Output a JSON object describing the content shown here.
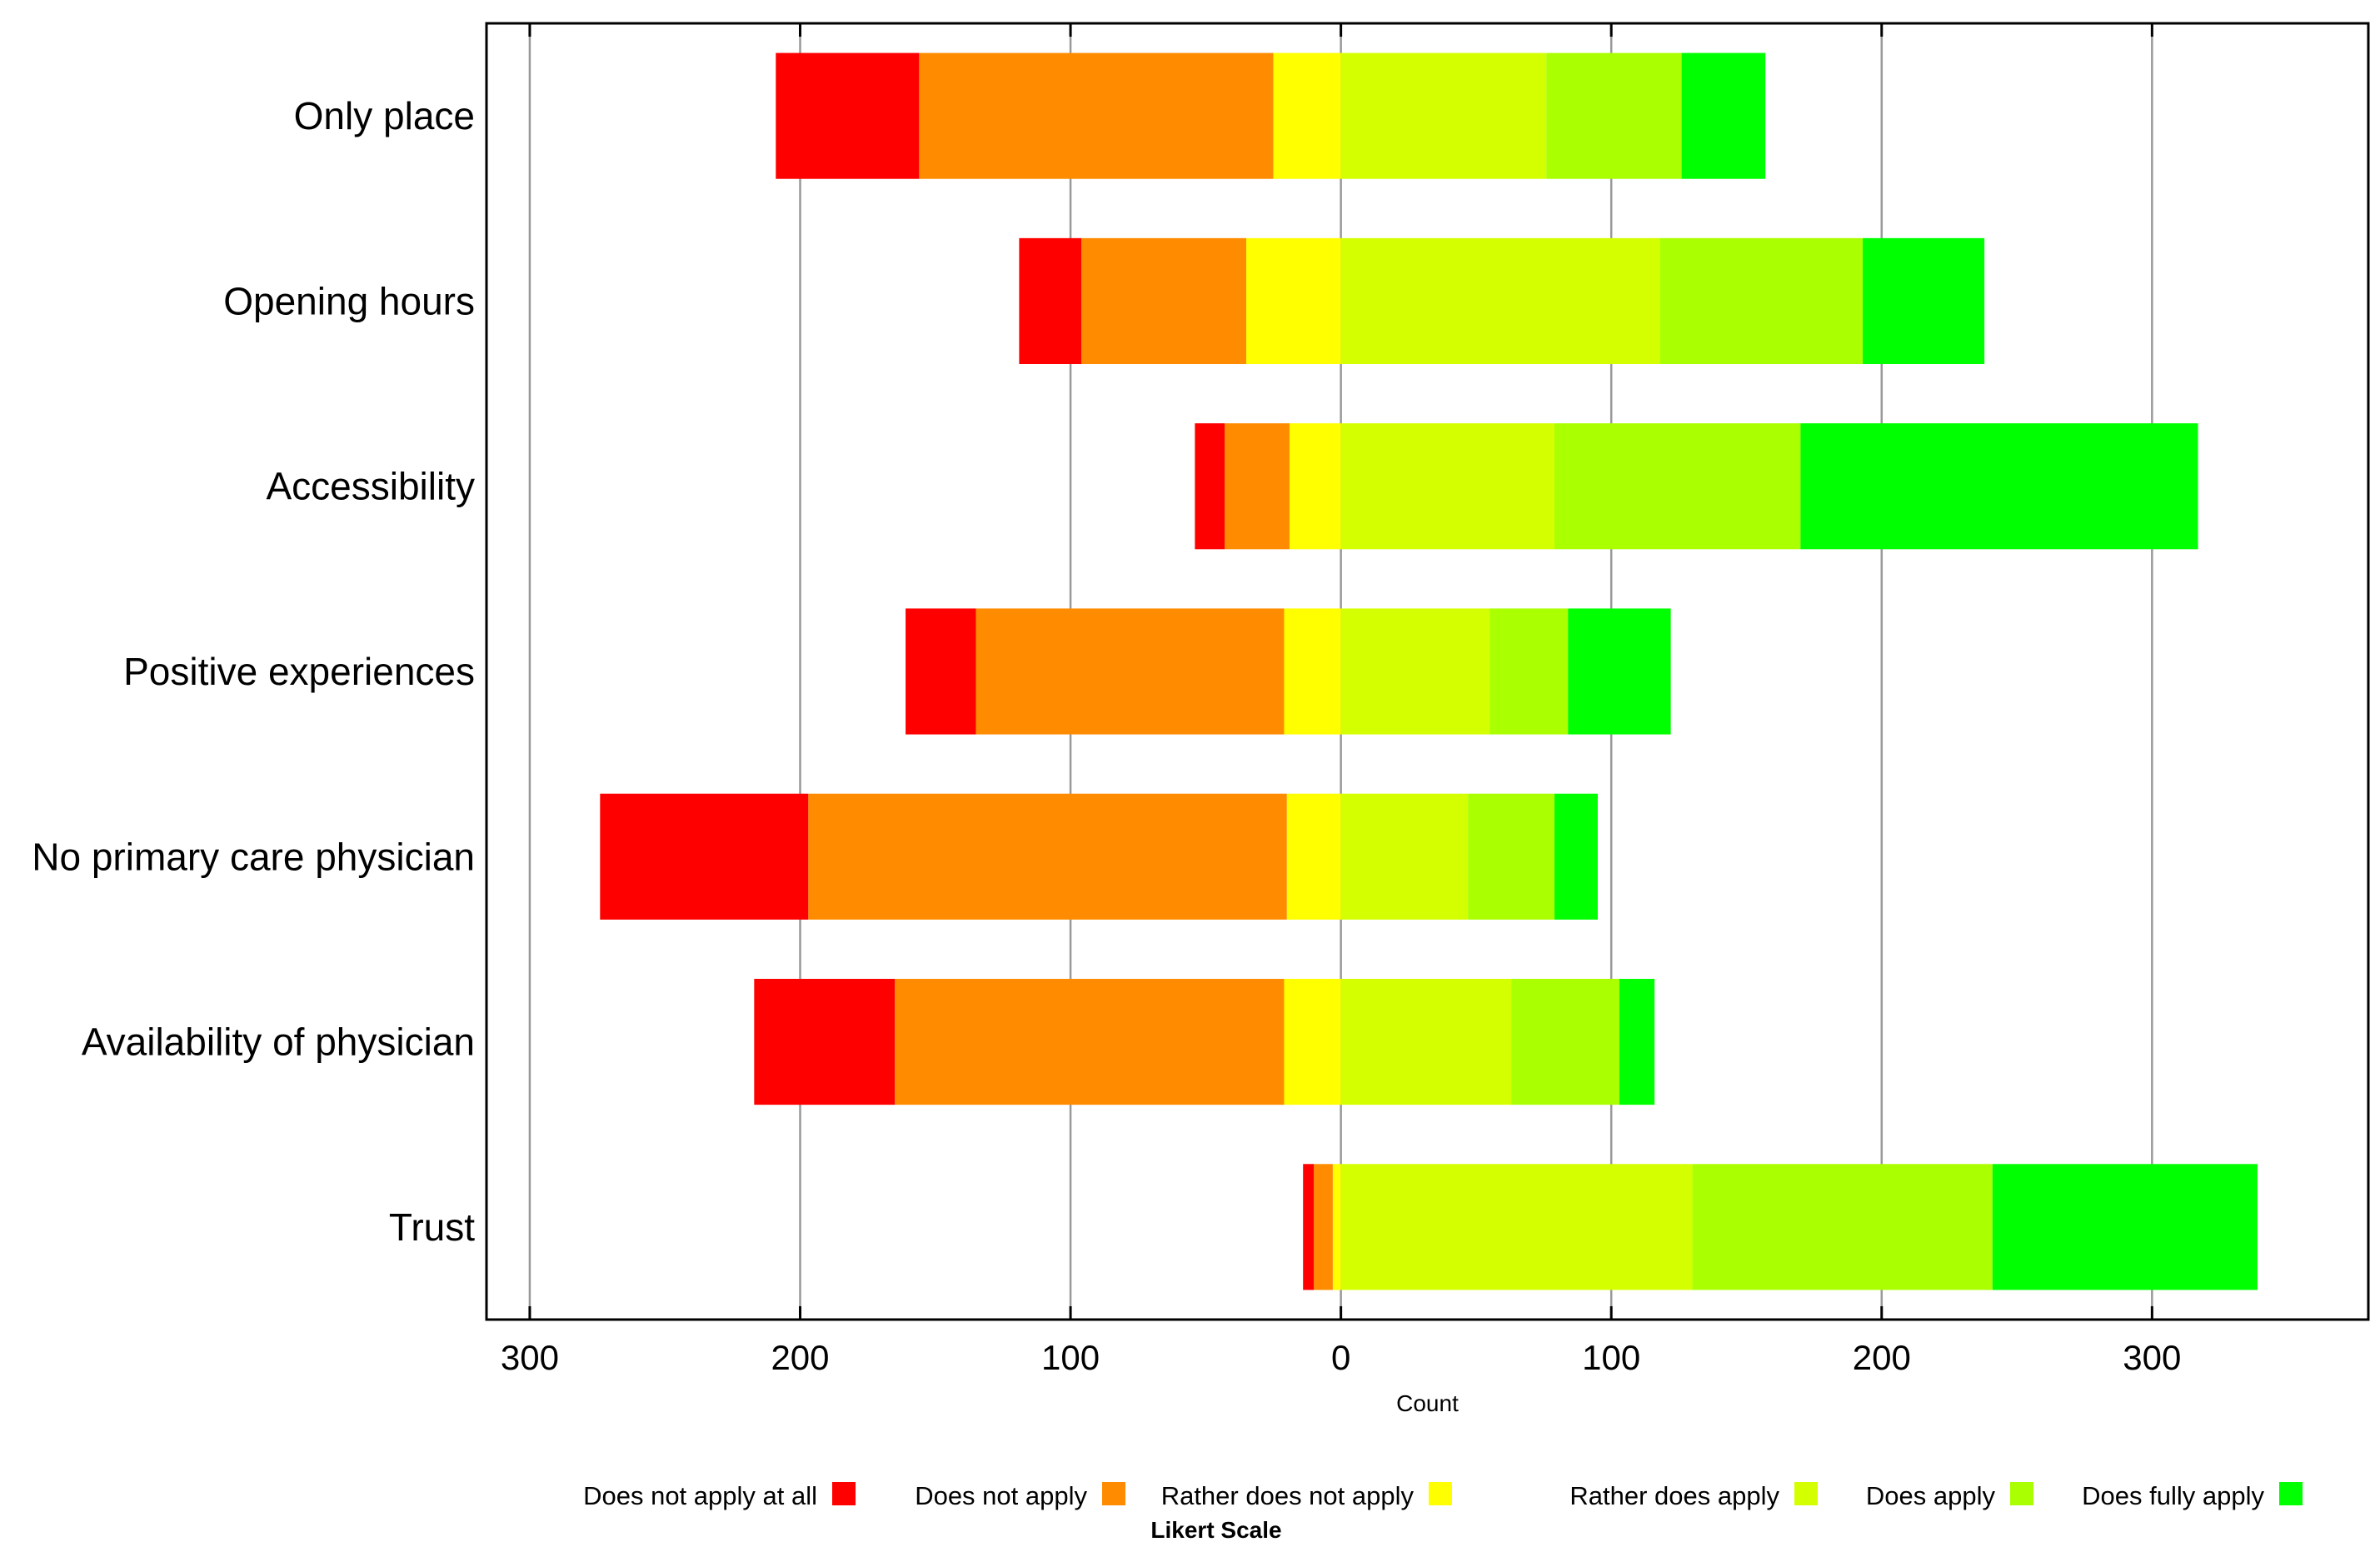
{
  "chart_data": {
    "type": "bar",
    "orientation": "horizontal-diverging",
    "categories": [
      "Only place",
      "Opening hours",
      "Accessibility",
      "Positive experiences",
      "No primary care physician",
      "Availability of physician",
      "Trust"
    ],
    "series": [
      {
        "name": "Does not apply at all",
        "side": "negative",
        "color": "#FF0000",
        "values": [
          53,
          23,
          11,
          26,
          77,
          52,
          4
        ]
      },
      {
        "name": "Does not apply",
        "side": "negative",
        "color": "#FF8C00",
        "values": [
          131,
          61,
          24,
          114,
          177,
          144,
          7
        ]
      },
      {
        "name": "Rather does not apply",
        "side": "negative",
        "color": "#FFFF00",
        "values": [
          25,
          35,
          19,
          21,
          20,
          21,
          3
        ]
      },
      {
        "name": "Rather does apply",
        "side": "positive",
        "color": "#D4FF00",
        "values": [
          76,
          118,
          79,
          55,
          47,
          63,
          130
        ]
      },
      {
        "name": "Does apply",
        "side": "positive",
        "color": "#AAFF00",
        "values": [
          50,
          75,
          91,
          29,
          32,
          40,
          111
        ]
      },
      {
        "name": "Does fully apply",
        "side": "positive",
        "color": "#00FF00",
        "values": [
          31,
          45,
          147,
          38,
          16,
          13,
          98
        ]
      }
    ],
    "xlabel": "Count",
    "xlim": [
      -316,
      380
    ],
    "ticks": [
      -300,
      -200,
      -100,
      0,
      100,
      200,
      300
    ],
    "tick_labels": [
      "300",
      "200",
      "100",
      "0",
      "100",
      "200",
      "300"
    ],
    "grid": true,
    "legend": {
      "title": "Likert Scale",
      "position": "bottom"
    }
  }
}
